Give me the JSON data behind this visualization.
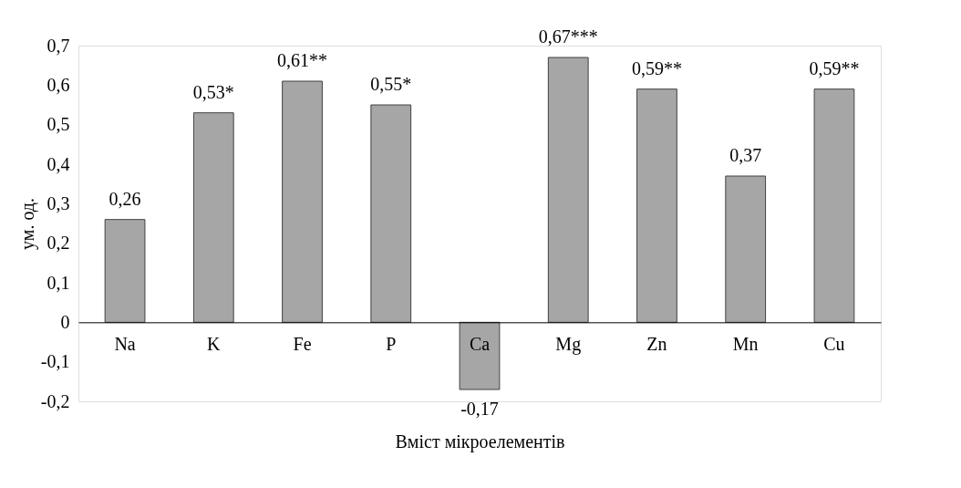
{
  "chart_data": {
    "type": "bar",
    "xlabel": "Вміст мікроелементів",
    "ylabel": "ум. од.",
    "categories": [
      "Na",
      "K",
      "Fe",
      "P",
      "Ca",
      "Mg",
      "Zn",
      "Mn",
      "Cu"
    ],
    "values": [
      0.26,
      0.53,
      0.61,
      0.55,
      -0.17,
      0.67,
      0.59,
      0.37,
      0.59
    ],
    "value_labels": [
      "0,26",
      "0,53*",
      "0,61**",
      "0,55*",
      "-0,17",
      "0,67***",
      "0,59**",
      "0,37",
      "0,59**"
    ],
    "color": "#a6a6a6",
    "ylim": [
      -0.2,
      0.7
    ],
    "yticks": [
      {
        "value": -0.2,
        "label": "-0,2"
      },
      {
        "value": -0.1,
        "label": "-0,1"
      },
      {
        "value": 0,
        "label": "0"
      },
      {
        "value": 0.1,
        "label": "0,1"
      },
      {
        "value": 0.2,
        "label": "0,2"
      },
      {
        "value": 0.3,
        "label": "0,3"
      },
      {
        "value": 0.4,
        "label": "0,4"
      },
      {
        "value": 0.5,
        "label": "0,5"
      },
      {
        "value": 0.6,
        "label": "0,6"
      },
      {
        "value": 0.7,
        "label": "0,7"
      }
    ],
    "grid": false
  }
}
